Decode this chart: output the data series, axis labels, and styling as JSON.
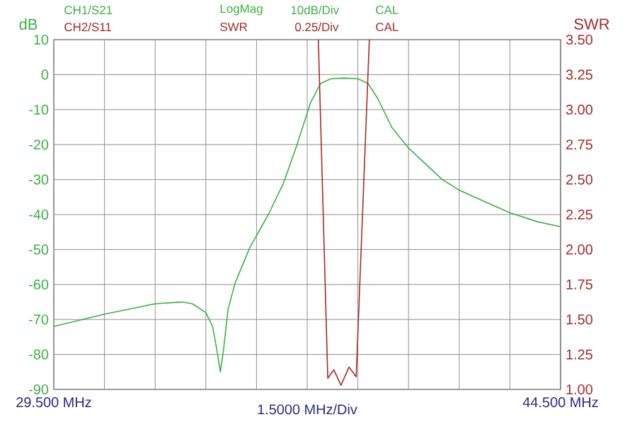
{
  "chart_data": {
    "type": "line",
    "ylabel": "dB",
    "y2label": "SWR",
    "x": [
      29.5,
      31.0,
      32.5,
      33.3,
      33.6,
      34.0,
      34.2,
      34.35,
      34.43,
      34.52,
      34.66,
      34.87,
      35.3,
      35.85,
      36.3,
      36.7,
      37.1,
      37.4,
      37.7,
      38.1,
      38.5,
      38.8,
      39.1,
      39.5,
      40.0,
      40.5,
      41.0,
      41.5,
      42.3,
      43.0,
      43.8,
      44.5
    ],
    "series": [
      {
        "name": "CH1/S21",
        "color": "#3cb043",
        "values": [
          -72,
          -68.5,
          -65.5,
          -65,
          -65.5,
          -68,
          -72,
          -80,
          -85,
          -79,
          -67,
          -59.5,
          -49.5,
          -40,
          -31,
          -20,
          -8,
          -2.5,
          -1.2,
          -1,
          -1.2,
          -2.5,
          -7,
          -15,
          -21,
          -25.5,
          -30,
          -33,
          -36.5,
          -39.5,
          -42,
          -43.5
        ]
      },
      {
        "name": "CH2/S11",
        "color": "#a82828",
        "axis": "y2",
        "x": [
          37.33,
          37.61,
          37.79,
          38.0,
          38.24,
          38.45,
          38.84
        ],
        "values": [
          3.5,
          1.08,
          1.14,
          1.03,
          1.16,
          1.09,
          3.5
        ]
      }
    ],
    "annotations": [
      "LogMag",
      "10dB/Div",
      "CAL",
      "SWR",
      "0.25/Div",
      "CAL",
      "1.5000 MHz/Div"
    ],
    "xlim": [
      29.5,
      44.5
    ],
    "xticks": [
      {
        "value": 29.5,
        "label": "29.500 MHz"
      },
      {
        "value": 31,
        "label": null
      },
      {
        "value": 32.5,
        "label": null
      },
      {
        "value": 34,
        "label": null
      },
      {
        "value": 35.5,
        "label": null
      },
      {
        "value": 37,
        "label": null
      },
      {
        "value": 38.5,
        "label": null
      },
      {
        "value": 40,
        "label": null
      },
      {
        "value": 41.5,
        "label": null
      },
      {
        "value": 43,
        "label": null
      },
      {
        "value": 44.5,
        "label": "44.500 MHz"
      }
    ],
    "ylim": [
      -90,
      10
    ],
    "yticks": [
      -90,
      -80,
      -70,
      -60,
      -50,
      -40,
      -30,
      -20,
      -10,
      0,
      10
    ],
    "y2lim": [
      1,
      3.5
    ],
    "y2ticks": [
      {
        "value": 1,
        "label": "1.00"
      },
      {
        "value": 1.25,
        "label": "1.25"
      },
      {
        "value": 1.5,
        "label": "1.50"
      },
      {
        "value": 1.75,
        "label": "1.75"
      },
      {
        "value": 2,
        "label": "2.00"
      },
      {
        "value": 2.25,
        "label": "2.25"
      },
      {
        "value": 2.5,
        "label": "2.50"
      },
      {
        "value": 2.75,
        "label": "2.75"
      },
      {
        "value": 3,
        "label": "3.00"
      },
      {
        "value": 3.25,
        "label": "3.25"
      },
      {
        "value": 3.5,
        "label": "3.50"
      }
    ],
    "grid": true
  }
}
